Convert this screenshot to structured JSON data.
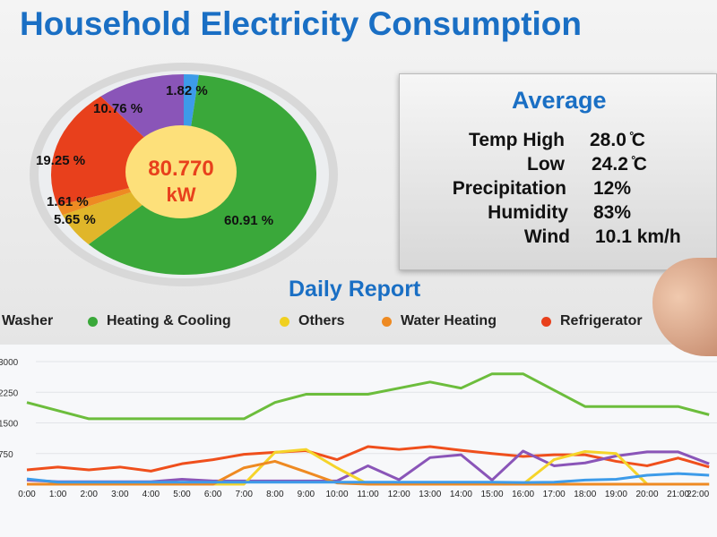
{
  "title": "Household Electricity Consumption",
  "total": {
    "value": "80.770",
    "unit": "kW"
  },
  "average": {
    "title": "Average",
    "rows": [
      {
        "label": "Temp High",
        "value": "28.0 ̊C"
      },
      {
        "label": "Low",
        "value": "24.2 ̊C"
      },
      {
        "label": "Precipitation",
        "value": "12%"
      },
      {
        "label": "Humidity",
        "value": "83%"
      },
      {
        "label": "Wind",
        "value": "10.1 km/h"
      }
    ]
  },
  "chart_data": [
    {
      "type": "pie",
      "slices": [
        {
          "label": "1.82 %",
          "value": 1.82,
          "color": "#3d9be9"
        },
        {
          "label": "60.91 %",
          "value": 60.91,
          "color": "#3aa83a"
        },
        {
          "label": "5.65 %",
          "value": 5.65,
          "color": "#e0b62a"
        },
        {
          "label": "1.61 %",
          "value": 1.61,
          "color": "#ee8a22"
        },
        {
          "label": "19.25 %",
          "value": 19.25,
          "color": "#e8401c"
        },
        {
          "label": "10.76 %",
          "value": 10.76,
          "color": "#8a55b8"
        }
      ]
    },
    {
      "type": "line",
      "title": "Daily Report",
      "x": [
        "0:00",
        "1:00",
        "2:00",
        "3:00",
        "4:00",
        "5:00",
        "6:00",
        "7:00",
        "8:00",
        "9:00",
        "10:00",
        "11:00",
        "12:00",
        "13:00",
        "14:00",
        "15:00",
        "16:00",
        "17:00",
        "18:00",
        "19:00",
        "20:00",
        "21:00",
        "22:00"
      ],
      "yticks": [
        3000,
        2250,
        1500,
        750
      ],
      "ylim": [
        0,
        3000
      ],
      "grid": true,
      "legend": [
        {
          "name": "Washer",
          "color": "#8a55b8"
        },
        {
          "name": "Heating & Cooling",
          "color": "#3aa83a"
        },
        {
          "name": "Others",
          "color": "#f0d020"
        },
        {
          "name": "Water Heating",
          "color": "#ee8a22"
        },
        {
          "name": "Refrigerator",
          "color": "#e8401c"
        }
      ],
      "series": [
        {
          "name": "Heating & Cooling",
          "color": "#6cbd3c",
          "values": [
            2000,
            1800,
            1600,
            1600,
            1600,
            1600,
            1600,
            1600,
            2000,
            2200,
            2200,
            2200,
            2350,
            2500,
            2350,
            2700,
            2700,
            2300,
            1900,
            1900,
            1900,
            1900,
            1700
          ]
        },
        {
          "name": "Refrigerator",
          "color": "#ef4f1c",
          "values": [
            350,
            420,
            350,
            420,
            320,
            500,
            600,
            730,
            780,
            820,
            600,
            920,
            850,
            920,
            830,
            750,
            680,
            720,
            720,
            560,
            450,
            640,
            420
          ]
        },
        {
          "name": "Washer",
          "color": "#8a55b8",
          "values": [
            100,
            60,
            60,
            60,
            60,
            120,
            80,
            80,
            80,
            80,
            80,
            450,
            110,
            650,
            720,
            100,
            810,
            450,
            520,
            690,
            790,
            790,
            500
          ]
        },
        {
          "name": "Others",
          "color": "#f5d42a",
          "values": [
            0,
            0,
            0,
            0,
            0,
            0,
            0,
            0,
            780,
            850,
            400,
            0,
            0,
            0,
            0,
            0,
            0,
            600,
            800,
            750,
            0,
            0,
            0
          ]
        },
        {
          "name": "Water Heating",
          "color": "#ee8a22",
          "values": [
            0,
            0,
            0,
            0,
            0,
            0,
            0,
            400,
            560,
            300,
            30,
            0,
            0,
            0,
            0,
            0,
            0,
            0,
            0,
            0,
            0,
            0,
            0
          ]
        },
        {
          "color": "#3d9be9",
          "values": [
            130,
            50,
            50,
            50,
            50,
            50,
            50,
            50,
            50,
            50,
            50,
            50,
            50,
            50,
            50,
            50,
            40,
            50,
            100,
            120,
            220,
            260,
            220
          ]
        }
      ]
    }
  ]
}
